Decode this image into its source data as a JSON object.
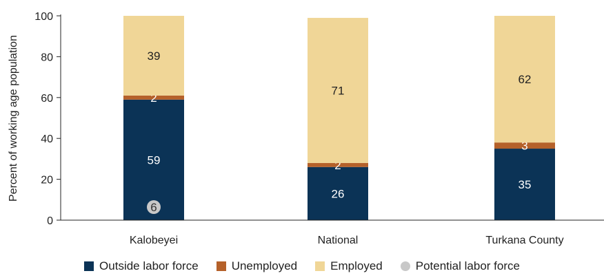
{
  "chart_data": {
    "type": "bar",
    "stacked": true,
    "categories": [
      "Kalobeyei",
      "National",
      "Turkana County"
    ],
    "series": [
      {
        "name": "Outside labor force",
        "values": [
          59,
          26,
          35
        ],
        "color": "#0b3356",
        "label_color": "#ffffff"
      },
      {
        "name": "Unemployed",
        "values": [
          2,
          2,
          3
        ],
        "color": "#b5612a",
        "label_color": "#ffffff"
      },
      {
        "name": "Employed",
        "values": [
          39,
          71,
          62
        ],
        "color": "#f0d697",
        "label_color": "#222222"
      }
    ],
    "markers": [
      {
        "name": "Potential labor force",
        "category": "Kalobeyei",
        "value": 6,
        "color": "#c8c8c8"
      }
    ],
    "ylabel": "Percent of working age population",
    "xlabel": "",
    "ylim": [
      0,
      100
    ],
    "yticks": [
      0,
      20,
      40,
      60,
      80,
      100
    ],
    "grid": false,
    "legend_position": "bottom"
  }
}
